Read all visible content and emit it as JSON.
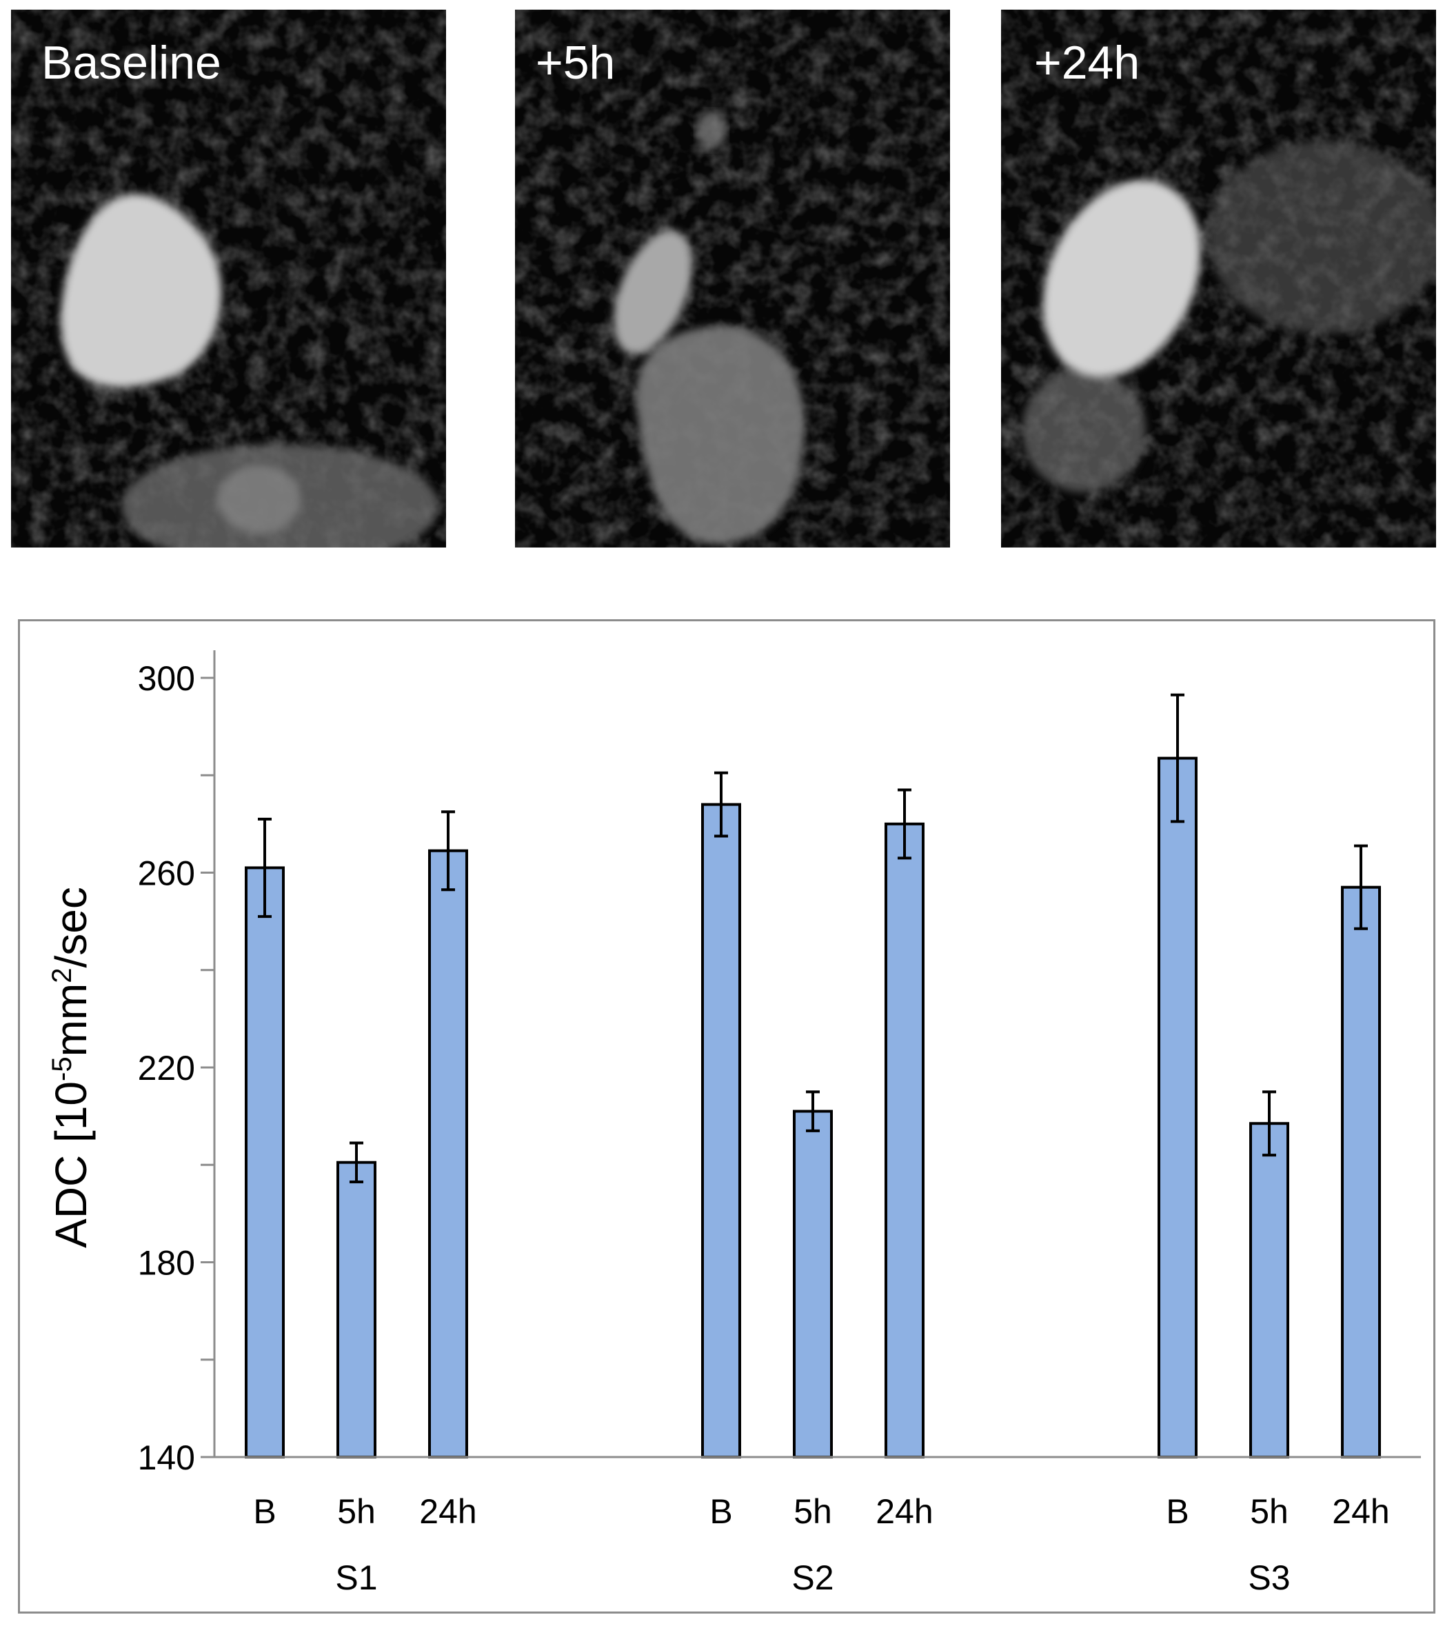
{
  "panels": [
    {
      "label": "Baseline"
    },
    {
      "label": "+5h"
    },
    {
      "label": "+24h"
    }
  ],
  "chart_data": {
    "type": "bar",
    "ylabel": "ADC [10-5mm2/sec",
    "ylabel_parts": {
      "pre": "ADC [10",
      "exp": "-5",
      "mid": "mm",
      "exp2": "2",
      "post": "/sec"
    },
    "ylim": [
      140,
      300
    ],
    "yticks": [
      140,
      180,
      220,
      260,
      300
    ],
    "grid": false,
    "legend": "none",
    "bar_color": "#8eb1e3",
    "bar_outline": "#000000",
    "groups": [
      {
        "name": "S1",
        "bars": [
          {
            "label": "B",
            "value": 261,
            "error": 10
          },
          {
            "label": "5h",
            "value": 200.5,
            "error": 4
          },
          {
            "label": "24h",
            "value": 264.5,
            "error": 8
          }
        ]
      },
      {
        "name": "S2",
        "bars": [
          {
            "label": "B",
            "value": 274,
            "error": 6.5
          },
          {
            "label": "5h",
            "value": 211,
            "error": 4
          },
          {
            "label": "24h",
            "value": 270,
            "error": 7
          }
        ]
      },
      {
        "name": "S3",
        "bars": [
          {
            "label": "B",
            "value": 283.5,
            "error": 13
          },
          {
            "label": "5h",
            "value": 208.5,
            "error": 6.5
          },
          {
            "label": "24h",
            "value": 257,
            "error": 8.5
          }
        ]
      }
    ]
  }
}
